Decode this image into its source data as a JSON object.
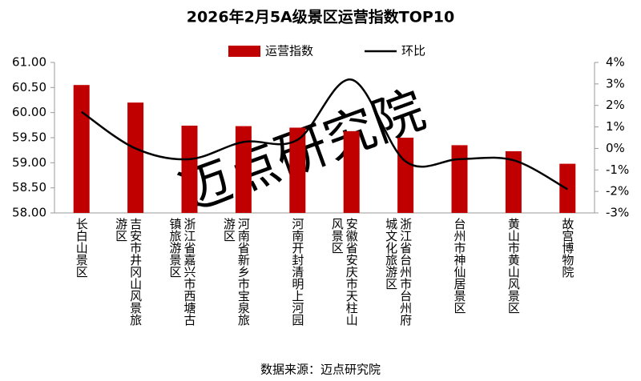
{
  "chart_data": {
    "type": "bar_line",
    "title": "2026年2月5A级景区运营指数TOP10",
    "categories": [
      "长白山景区",
      "吉安市井冈山风景旅游区",
      "浙江省嘉兴市西塘古镇旅游景区",
      "河南省新乡市宝泉旅游区",
      "河南开封清明上河园",
      "安徽省安庆市天柱山风景区",
      "浙江省台州市台州府城文化旅游区",
      "台州市神仙居景区",
      "黄山市黄山风景区",
      "故宫博物院"
    ],
    "series": [
      {
        "name": "运营指数",
        "type": "bar",
        "color": "#c00000",
        "values": [
          60.55,
          60.2,
          59.74,
          59.73,
          59.7,
          59.63,
          59.5,
          59.35,
          59.23,
          58.98
        ]
      },
      {
        "name": "环比",
        "type": "line",
        "axis": "y2",
        "color": "#000000",
        "values": [
          1.7,
          0.0,
          -0.5,
          0.3,
          0.4,
          3.2,
          -0.6,
          -0.5,
          -0.55,
          -1.9
        ]
      }
    ],
    "ylim": [
      58,
      61
    ],
    "yticks": [
      {
        "value": 58,
        "label": "58.00"
      },
      {
        "value": 58.5,
        "label": "58.50"
      },
      {
        "value": 59,
        "label": "59.00"
      },
      {
        "value": 59.5,
        "label": "59.50"
      },
      {
        "value": 60,
        "label": "60.00"
      },
      {
        "value": 60.5,
        "label": "60.50"
      },
      {
        "value": 61,
        "label": "61.00"
      }
    ],
    "y2lim": [
      -3,
      4
    ],
    "y2ticks": [
      {
        "value": -3,
        "label": "-3%"
      },
      {
        "value": -2,
        "label": "-2%"
      },
      {
        "value": -1,
        "label": "-1%"
      },
      {
        "value": 0,
        "label": "0%"
      },
      {
        "value": 1,
        "label": "1%"
      },
      {
        "value": 2,
        "label": "2%"
      },
      {
        "value": 3,
        "label": "3%"
      },
      {
        "value": 4,
        "label": "4%"
      }
    ],
    "grid": false,
    "legend": "top",
    "source": "数据来源：迈点研究院",
    "watermark": "迈点研究院"
  }
}
